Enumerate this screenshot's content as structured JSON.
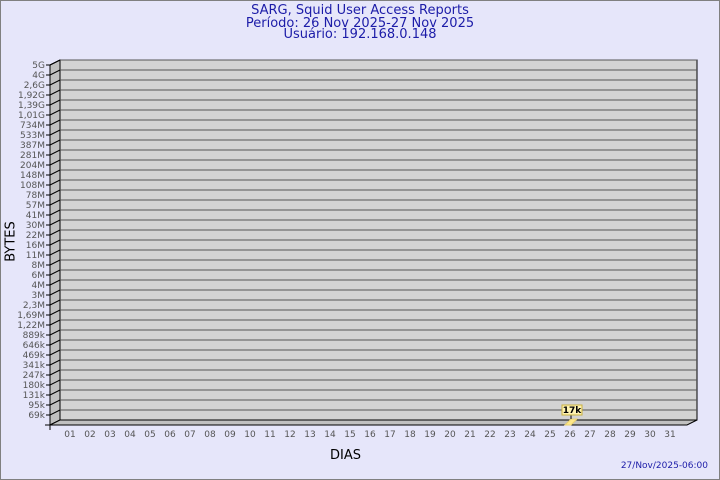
{
  "chart_data": {
    "type": "bar",
    "title": "SARG, Squid User Access Reports",
    "subtitle_lines": [
      "Período: 26 Nov 2025-27 Nov 2025",
      "Usuário: 192.168.0.148"
    ],
    "xlabel": "DIAS",
    "ylabel": "BYTES",
    "categories": [
      "01",
      "02",
      "03",
      "04",
      "05",
      "06",
      "07",
      "08",
      "09",
      "10",
      "11",
      "12",
      "13",
      "14",
      "15",
      "16",
      "17",
      "18",
      "19",
      "20",
      "21",
      "22",
      "23",
      "24",
      "25",
      "26",
      "27",
      "28",
      "29",
      "30",
      "31"
    ],
    "y_ticks": [
      "5G",
      "4G",
      "2,6G",
      "1,92G",
      "1,39G",
      "1,01G",
      "734M",
      "533M",
      "387M",
      "281M",
      "204M",
      "148M",
      "108M",
      "78M",
      "57M",
      "41M",
      "30M",
      "22M",
      "16M",
      "11M",
      "8M",
      "6M",
      "4M",
      "3M",
      "2,3M",
      "1,69M",
      "1,22M",
      "889k",
      "646k",
      "469k",
      "341k",
      "247k",
      "180k",
      "131k",
      "95k",
      "69k"
    ],
    "y_scale": "log",
    "grid": true,
    "series": [
      {
        "points": [
          {
            "x": "26",
            "value": 17000,
            "label": "17k"
          }
        ]
      }
    ],
    "colors": {
      "plane": "#d3d3d3",
      "side": "#c0c0c0",
      "bar": "#ffe88a",
      "label_bg": "#fff3b0",
      "title": "#1c1ca8"
    }
  },
  "footer": {
    "timestamp": "27/Nov/2025-06:00"
  }
}
